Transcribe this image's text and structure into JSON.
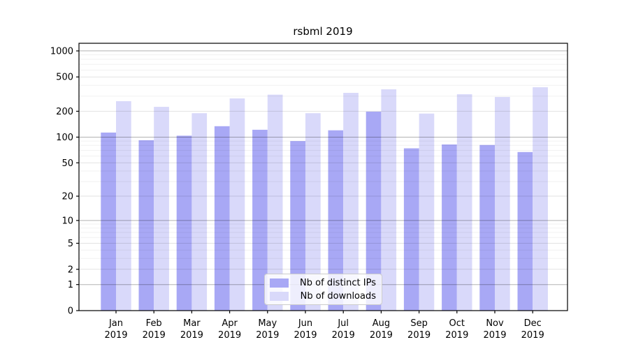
{
  "chart_data": {
    "type": "bar",
    "title": "rsbml 2019",
    "categories": [
      "Jan",
      "Feb",
      "Mar",
      "Apr",
      "May",
      "Jun",
      "Jul",
      "Aug",
      "Sep",
      "Oct",
      "Nov",
      "Dec"
    ],
    "year": "2019",
    "series": [
      {
        "name": "Nb of distinct IPs",
        "color": "#a8a8f5",
        "values": [
          113,
          92,
          104,
          134,
          122,
          90,
          120,
          198,
          74,
          82,
          81,
          67
        ]
      },
      {
        "name": "Nb of downloads",
        "color": "#d9d9fa",
        "values": [
          262,
          225,
          190,
          282,
          312,
          190,
          327,
          360,
          188,
          315,
          293,
          380
        ]
      }
    ],
    "y_ticks": [
      0,
      1,
      2,
      5,
      10,
      20,
      50,
      100,
      200,
      500,
      1000
    ],
    "y_scale": "log10(1+y)",
    "ylim": [
      0,
      1250
    ],
    "grid": "on",
    "major_grid_values": [
      1,
      10,
      100,
      1000
    ],
    "legend_position": "lower-center",
    "axis_color": "#000000",
    "major_grid_color": "#b3b3b3",
    "minor_grid_color": "#e6e6e6"
  }
}
